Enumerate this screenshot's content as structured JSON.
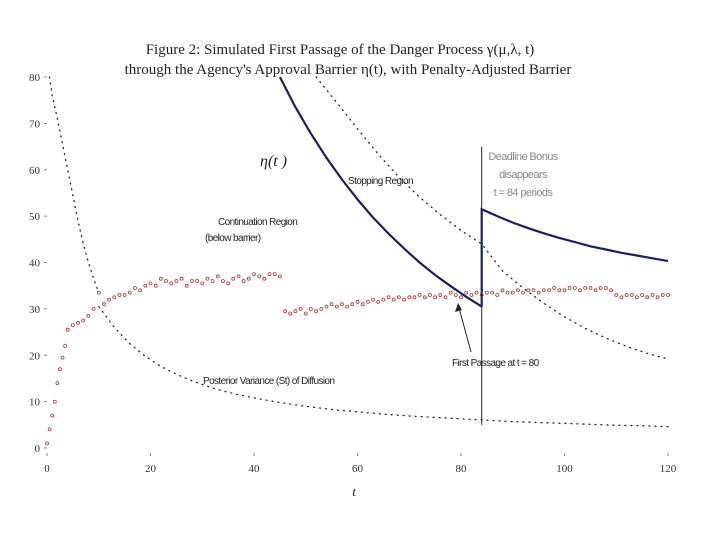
{
  "chart_data": {
    "type": "line",
    "title_lines": [
      "Figure 2: Simulated First Passage of the Danger Process  γ(μ,λ, t)",
      "through the Agency's Approval Barrier η(t), with Penalty-Adjusted Barrier"
    ],
    "xlabel": "t",
    "ylabel": "",
    "xlim": [
      0,
      120
    ],
    "ylim": [
      0,
      80
    ],
    "x_ticks": [
      0,
      20,
      40,
      60,
      80,
      100,
      120
    ],
    "y_ticks": [
      0,
      10,
      20,
      30,
      40,
      50,
      60,
      70,
      80
    ],
    "colors": {
      "barrier": "#1c1f5e",
      "danger": "#b03030",
      "dotted": "#1c1f5e",
      "deadline": "#222222"
    },
    "series": [
      {
        "key": "barrier",
        "x": [
          45,
          48,
          51,
          54,
          57,
          60,
          63,
          66,
          69,
          72,
          75,
          78,
          81,
          84
        ],
        "y": [
          80,
          73.5,
          67.8,
          62.6,
          57.9,
          53.6,
          49.7,
          46.2,
          43.0,
          40.0,
          37.3,
          34.9,
          32.6,
          30.5
        ]
      },
      {
        "key": "barrier_after",
        "x": [
          84,
          84,
          87,
          90,
          93,
          96,
          99,
          102,
          105,
          108,
          111,
          114,
          117,
          120
        ],
        "y": [
          30.5,
          51.5,
          50.0,
          48.6,
          47.4,
          46.3,
          45.3,
          44.4,
          43.5,
          42.8,
          42.1,
          41.5,
          40.9,
          40.3
        ]
      },
      {
        "key": "barrier_unadjusted",
        "x": [
          52,
          56,
          60,
          64,
          68,
          72,
          76,
          80,
          84,
          88,
          92,
          96,
          100,
          104,
          108,
          112,
          116,
          120
        ],
        "y": [
          80,
          74.5,
          68.8,
          63.4,
          58.4,
          54.1,
          50.3,
          46.9,
          44.0,
          38.2,
          34.5,
          31.2,
          28.3,
          25.8,
          23.7,
          21.9,
          20.4,
          19.2
        ]
      },
      {
        "key": "left_barrier",
        "x": [
          0.5,
          1,
          2,
          3,
          4,
          5,
          6,
          7,
          8,
          9,
          10
        ],
        "y": [
          80,
          76,
          71,
          65.5,
          60,
          54.5,
          49,
          44,
          40,
          36.5,
          33.5
        ]
      },
      {
        "key": "variance",
        "x": [
          10,
          13,
          16,
          19,
          22,
          25,
          28,
          31,
          34,
          37,
          40,
          45,
          50,
          55,
          60,
          65,
          70,
          75,
          80,
          85,
          90,
          95,
          100,
          105,
          110,
          115,
          120
        ],
        "y": [
          30.5,
          26,
          22.5,
          19.8,
          17.6,
          15.9,
          14.5,
          13.3,
          12.3,
          11.5,
          10.8,
          9.8,
          9.0,
          8.3,
          7.8,
          7.3,
          6.9,
          6.6,
          6.3,
          6.0,
          5.7,
          5.5,
          5.3,
          5.1,
          4.9,
          4.8,
          4.6
        ]
      },
      {
        "key": "danger",
        "x": [
          0,
          0.5,
          1,
          1.5,
          2,
          2.5,
          3,
          3.5,
          4,
          5,
          6,
          7,
          8,
          9,
          10,
          11,
          12,
          13,
          14,
          15,
          16,
          17,
          18,
          19,
          20,
          21,
          22,
          23,
          24,
          25,
          26,
          27,
          28,
          29,
          30,
          31,
          32,
          33,
          34,
          35,
          36,
          37,
          38,
          39,
          40,
          41,
          42,
          43,
          44,
          45,
          46,
          47,
          48,
          49,
          50,
          51,
          52,
          53,
          54,
          55,
          56,
          57,
          58,
          59,
          60,
          61,
          62,
          63,
          64,
          65,
          66,
          67,
          68,
          69,
          70,
          71,
          72,
          73,
          74,
          75,
          76,
          77,
          78,
          79,
          80,
          81,
          82,
          83,
          84,
          85,
          86,
          87,
          88,
          89,
          90,
          91,
          92,
          93,
          94,
          95,
          96,
          97,
          98,
          99,
          100,
          101,
          102,
          103,
          104,
          105,
          106,
          107,
          108,
          109,
          110,
          111,
          112,
          113,
          114,
          115,
          116,
          117,
          118,
          119,
          120
        ],
        "y": [
          1,
          4,
          7,
          10,
          14,
          17,
          19.5,
          22,
          25.5,
          26.5,
          27,
          27.5,
          28.5,
          30,
          33.5,
          31,
          32,
          32.5,
          33,
          33,
          33.5,
          34.5,
          34,
          35,
          35.5,
          35,
          36.5,
          36,
          35.5,
          36,
          36.5,
          35,
          36,
          36,
          35.5,
          36.5,
          36,
          37,
          36,
          35.5,
          36.5,
          37,
          36,
          36.5,
          37.5,
          37,
          36.5,
          37.5,
          37.5,
          37,
          29.5,
          29,
          29.5,
          30,
          29,
          30,
          29.5,
          30,
          30.5,
          31,
          30.5,
          31,
          30.5,
          31,
          31.5,
          31,
          31.5,
          32,
          31.5,
          32,
          32.5,
          32,
          32.5,
          32,
          32.5,
          32.5,
          33,
          32.5,
          33,
          32.5,
          33,
          32.5,
          33.5,
          33,
          32.5,
          33.5,
          33,
          33.5,
          33,
          33.5,
          33.5,
          33,
          34,
          33.5,
          33.5,
          34,
          33.5,
          34,
          34,
          33.5,
          34,
          34,
          34.5,
          34,
          34,
          34.5,
          34.5,
          34,
          34.5,
          34.5,
          34,
          34.5,
          34.5,
          34,
          33,
          32.5,
          33,
          33,
          32.5,
          33,
          32.5,
          33,
          32.5,
          33,
          33
        ]
      }
    ],
    "annotations": {
      "eta_label": "η(t )",
      "stopping_region": "Stopping Region",
      "continuation_line1": "Continuation Region",
      "continuation_line2": "(below barrier)",
      "deadline_line1": "Deadline Bonus",
      "deadline_line2": "disappears",
      "deadline_line3": "t = 84 periods",
      "first_passage": "First Passage at t = 80",
      "variance_label": "Posterior Variance (St) of Diffusion"
    },
    "deadline_x": 84,
    "first_passage_point": {
      "x": 80,
      "y": 30.5
    }
  }
}
